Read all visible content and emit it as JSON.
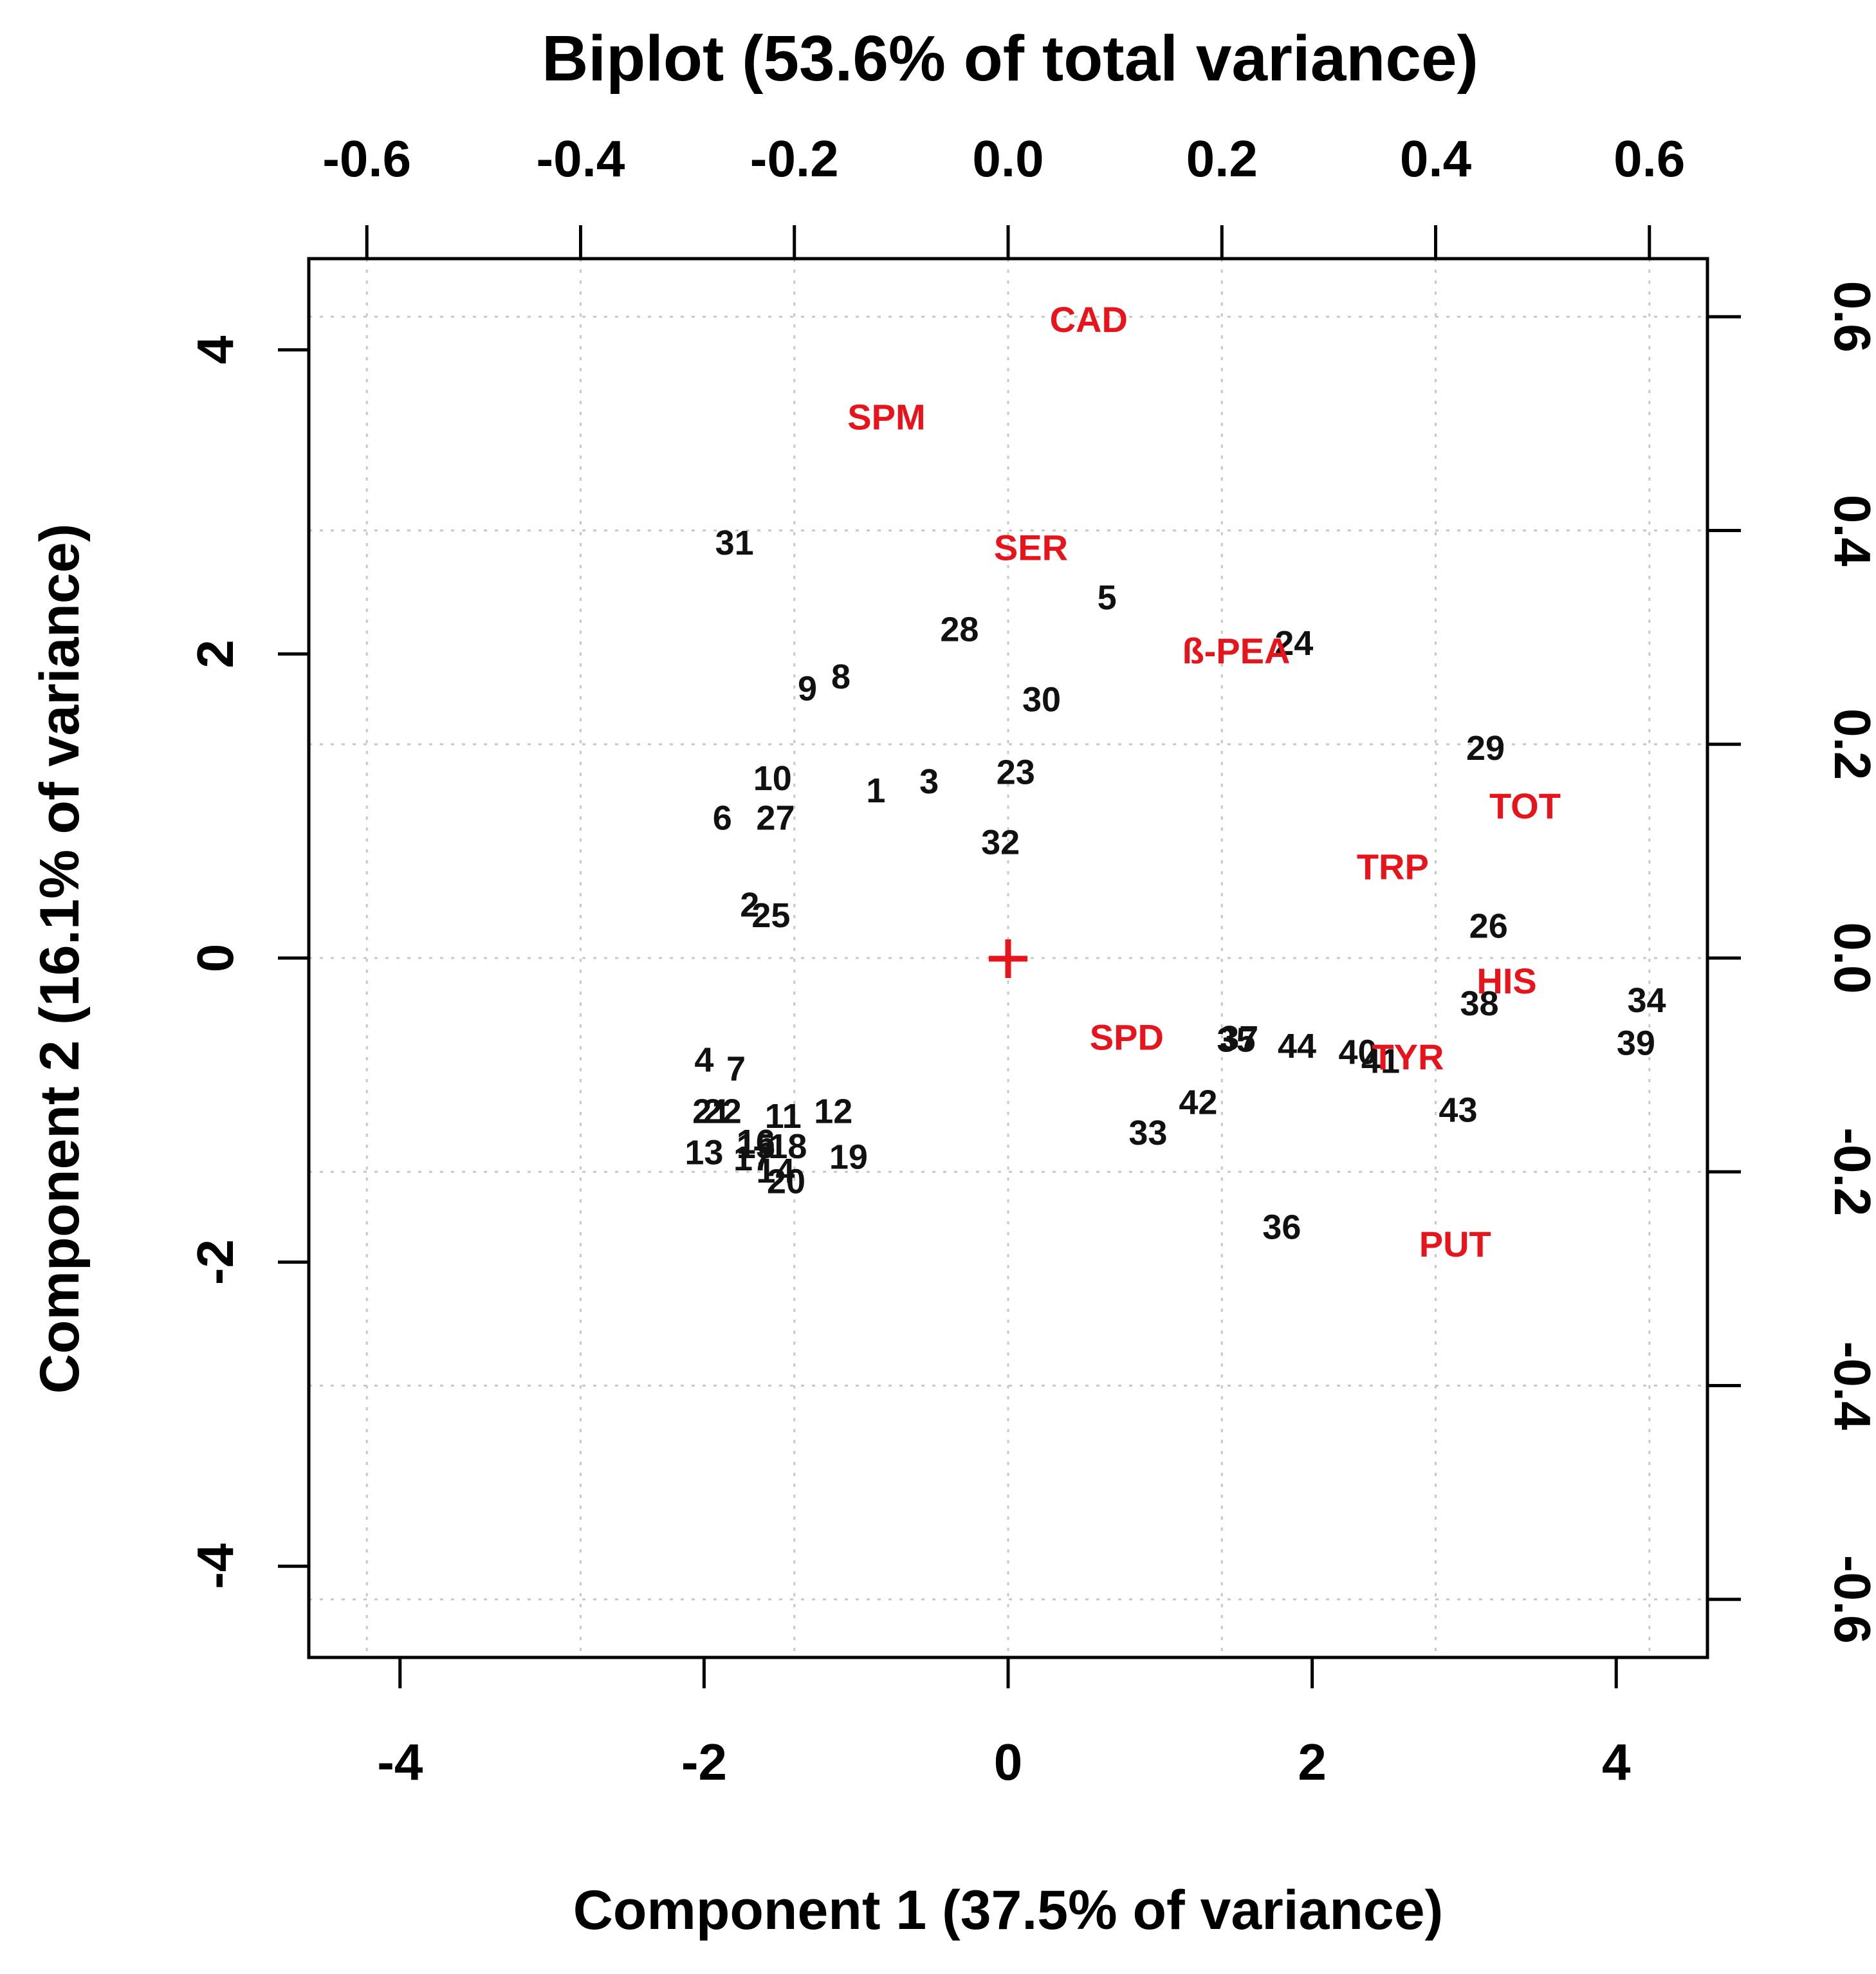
{
  "chart_data": {
    "type": "scatter",
    "title": "Biplot (53.6% of total variance)",
    "xlabel": "Component 1 (37.5% of variance)",
    "ylabel": "Component 2 (16.1% of variance)",
    "xlim": [
      -4.6,
      4.6
    ],
    "ylim": [
      -4.6,
      4.6
    ],
    "x_ticks": [
      -4,
      -2,
      0,
      2,
      4
    ],
    "y_ticks": [
      -4,
      -2,
      0,
      2,
      4
    ],
    "x_tick_labels": [
      "-4",
      "-2",
      "0",
      "2",
      "4"
    ],
    "y_tick_labels": [
      "-4",
      "-2",
      "0",
      "2",
      "4"
    ],
    "top_lim": [
      -0.6543,
      0.6543
    ],
    "right_lim": [
      -0.6543,
      0.6543
    ],
    "top_ticks": [
      -0.6,
      -0.4,
      -0.2,
      0.0,
      0.2,
      0.4,
      0.6
    ],
    "right_ticks": [
      -0.6,
      -0.4,
      -0.2,
      0.0,
      0.2,
      0.4,
      0.6
    ],
    "top_tick_labels": [
      "-0.6",
      "-0.4",
      "-0.2",
      "0.0",
      "0.2",
      "0.4",
      "0.6"
    ],
    "right_tick_labels": [
      "-0.6",
      "-0.4",
      "-0.2",
      "0.0",
      "0.2",
      "0.4",
      "0.6"
    ],
    "grid": true,
    "observation_color": "#111111",
    "variable_color": "#e8141b",
    "origin_marker": "+",
    "observations": [
      {
        "label": "1",
        "x": -0.87,
        "y": 1.1
      },
      {
        "label": "2",
        "x": -1.7,
        "y": 0.35
      },
      {
        "label": "3",
        "x": -0.52,
        "y": 1.16
      },
      {
        "label": "4",
        "x": -2.0,
        "y": -0.67
      },
      {
        "label": "5",
        "x": 0.65,
        "y": 2.37
      },
      {
        "label": "6",
        "x": -1.88,
        "y": 0.92
      },
      {
        "label": "7",
        "x": -1.79,
        "y": -0.73
      },
      {
        "label": "8",
        "x": -1.1,
        "y": 1.85
      },
      {
        "label": "9",
        "x": -1.32,
        "y": 1.77
      },
      {
        "label": "10",
        "x": -1.55,
        "y": 1.18
      },
      {
        "label": "11",
        "x": -1.48,
        "y": -1.04
      },
      {
        "label": "12",
        "x": -1.15,
        "y": -1.01
      },
      {
        "label": "13",
        "x": -2.0,
        "y": -1.28
      },
      {
        "label": "14",
        "x": -1.53,
        "y": -1.4
      },
      {
        "label": "15",
        "x": -1.66,
        "y": -1.24
      },
      {
        "label": "16",
        "x": -1.66,
        "y": -1.21
      },
      {
        "label": "17",
        "x": -1.68,
        "y": -1.32
      },
      {
        "label": "18",
        "x": -1.45,
        "y": -1.24
      },
      {
        "label": "19",
        "x": -1.05,
        "y": -1.31
      },
      {
        "label": "20",
        "x": -1.46,
        "y": -1.47
      },
      {
        "label": "21",
        "x": -1.95,
        "y": -1.01
      },
      {
        "label": "22",
        "x": -1.88,
        "y": -1.01
      },
      {
        "label": "23",
        "x": 0.05,
        "y": 1.22
      },
      {
        "label": "24",
        "x": 1.88,
        "y": 2.07
      },
      {
        "label": "25",
        "x": -1.56,
        "y": 0.28
      },
      {
        "label": "26",
        "x": 3.16,
        "y": 0.21
      },
      {
        "label": "27",
        "x": -1.53,
        "y": 0.92
      },
      {
        "label": "28",
        "x": -0.32,
        "y": 2.16
      },
      {
        "label": "29",
        "x": 3.14,
        "y": 1.38
      },
      {
        "label": "30",
        "x": 0.22,
        "y": 1.7
      },
      {
        "label": "31",
        "x": -1.8,
        "y": 2.73
      },
      {
        "label": "32",
        "x": -0.05,
        "y": 0.76
      },
      {
        "label": "33",
        "x": 0.92,
        "y": -1.15
      },
      {
        "label": "35",
        "x": 1.5,
        "y": -0.54
      },
      {
        "label": "36",
        "x": 1.8,
        "y": -1.77
      },
      {
        "label": "37",
        "x": 1.52,
        "y": -0.53
      },
      {
        "label": "38",
        "x": 3.1,
        "y": -0.3
      },
      {
        "label": "39",
        "x": 4.13,
        "y": -0.56
      },
      {
        "label": "40",
        "x": 2.3,
        "y": -0.62
      },
      {
        "label": "41",
        "x": 2.45,
        "y": -0.68
      },
      {
        "label": "42",
        "x": 1.25,
        "y": -0.95
      },
      {
        "label": "43",
        "x": 2.96,
        "y": -1.0
      },
      {
        "label": "44",
        "x": 1.9,
        "y": -0.58
      },
      {
        "label": "34",
        "x": 4.2,
        "y": -0.28
      }
    ],
    "variables": [
      {
        "label": "CAD",
        "x": 0.53,
        "y": 4.2
      },
      {
        "label": "SPM",
        "x": -0.8,
        "y": 3.56
      },
      {
        "label": "SER",
        "x": 0.15,
        "y": 2.7
      },
      {
        "label": "ß-PEA",
        "x": 1.5,
        "y": 2.02
      },
      {
        "label": "TOT",
        "x": 3.4,
        "y": 1.0
      },
      {
        "label": "TRP",
        "x": 2.53,
        "y": 0.6
      },
      {
        "label": "HIS",
        "x": 3.28,
        "y": -0.15
      },
      {
        "label": "SPD",
        "x": 0.78,
        "y": -0.52
      },
      {
        "label": "TYR",
        "x": 2.63,
        "y": -0.65
      },
      {
        "label": "PUT",
        "x": 2.94,
        "y": -1.88
      }
    ]
  }
}
